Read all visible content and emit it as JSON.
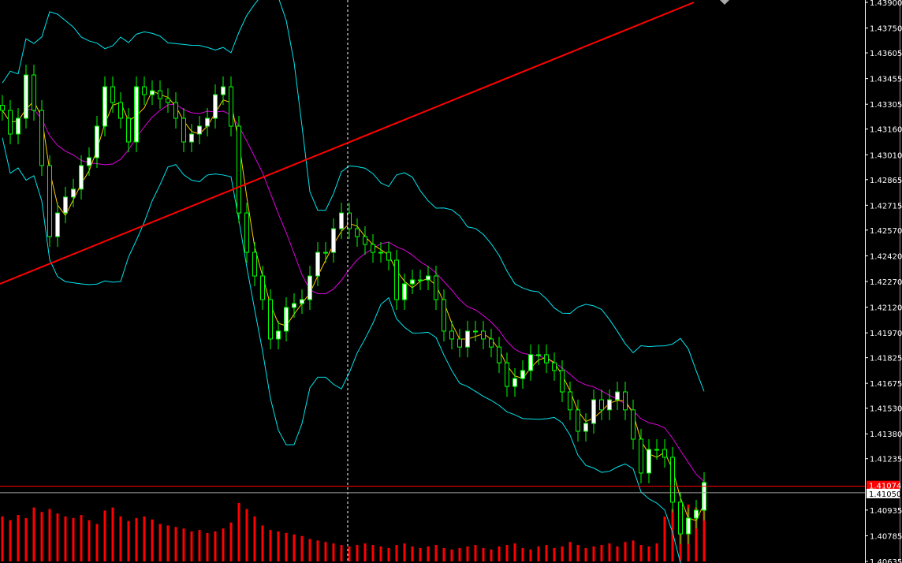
{
  "chart_data": {
    "type": "candlestick",
    "symbol_note": "",
    "y_axis": {
      "range": [
        1.40635,
        1.439
      ],
      "tick_labels": [
        "1.43900",
        "1.43750",
        "1.43605",
        "1.43455",
        "1.43305",
        "1.43160",
        "1.43010",
        "1.42865",
        "1.42715",
        "1.42570",
        "1.42420",
        "1.42270",
        "1.42120",
        "1.41970",
        "1.41825",
        "1.41675",
        "1.41530",
        "1.41380",
        "1.41235",
        "1.40935",
        "1.40785",
        "1.40635"
      ]
    },
    "closes": [
      1.43269,
      1.43131,
      1.43223,
      1.43476,
      1.43269,
      1.42947,
      1.42532,
      1.4267,
      1.42763,
      1.42809,
      1.42947,
      1.42993,
      1.43177,
      1.43407,
      1.43315,
      1.43223,
      1.43085,
      1.43407,
      1.43361,
      1.43384,
      1.43338,
      1.43315,
      1.43223,
      1.43085,
      1.43131,
      1.43177,
      1.43223,
      1.43361,
      1.43407,
      1.43177,
      1.4267,
      1.4244,
      1.42302,
      1.42164,
      1.41934,
      1.4198,
      1.42118,
      1.42141,
      1.42164,
      1.42302,
      1.4244,
      1.4244,
      1.42578,
      1.4267,
      1.42578,
      1.42532,
      1.42486,
      1.4244,
      1.4244,
      1.42394,
      1.42164,
      1.42256,
      1.42279,
      1.42279,
      1.42302,
      1.42164,
      1.4198,
      1.41934,
      1.41887,
      1.4198,
      1.4198,
      1.41934,
      1.41887,
      1.41795,
      1.41657,
      1.41703,
      1.4175,
      1.41842,
      1.41842,
      1.41795,
      1.4175,
      1.41625,
      1.4152,
      1.41395,
      1.41441,
      1.41579,
      1.4152,
      1.41579,
      1.41625,
      1.4152,
      1.41349,
      1.41151,
      1.41289,
      1.41289,
      1.41243,
      1.40981,
      1.40796,
      1.40888,
      1.40934,
      1.41096
    ],
    "volumes": [
      60,
      55,
      62,
      58,
      72,
      66,
      70,
      64,
      60,
      58,
      62,
      55,
      50,
      68,
      72,
      60,
      54,
      58,
      60,
      56,
      50,
      48,
      46,
      44,
      40,
      42,
      38,
      40,
      44,
      52,
      78,
      70,
      60,
      48,
      42,
      40,
      38,
      36,
      34,
      30,
      28,
      26,
      24,
      22,
      20,
      22,
      24,
      22,
      20,
      18,
      22,
      24,
      20,
      18,
      20,
      22,
      18,
      16,
      18,
      20,
      22,
      18,
      16,
      20,
      22,
      24,
      18,
      16,
      20,
      22,
      18,
      20,
      26,
      22,
      18,
      20,
      22,
      24,
      20,
      26,
      28,
      22,
      20,
      24,
      60,
      70,
      80,
      76,
      72,
      90
    ],
    "indicators": {
      "bollinger_bands_color": "#00e5ee",
      "moving_average_color": "#e000e0",
      "fast_ma_color": "#ffcc00"
    },
    "trendline": {
      "from_price": 1.42256,
      "to_price": 1.439,
      "color": "#ff0000"
    },
    "horizontal_line": {
      "price": 1.41074,
      "label": "1.41074",
      "color": "#ff0000"
    },
    "bid_line": {
      "price": 1.4105,
      "label": "1.41050",
      "color": "#a0a0a0"
    },
    "colors": {
      "bull_body": "#ffffff",
      "bear_body": "#000000",
      "wick": "#00ff00",
      "volume": "#ff0000",
      "background": "#000000",
      "axis_text": "#ffffff"
    }
  }
}
